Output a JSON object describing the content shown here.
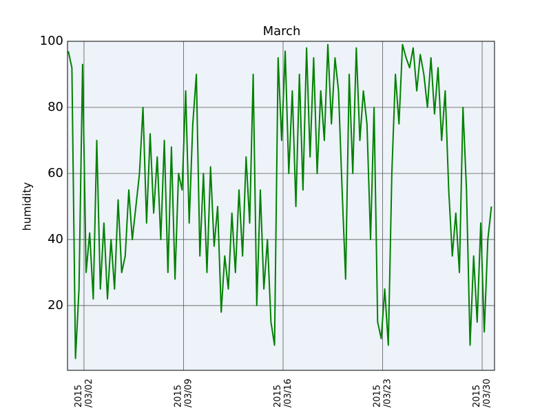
{
  "chart_data": {
    "type": "line",
    "title": "March",
    "ylabel": "humidity",
    "xlim": [
      0.84,
      30.87
    ],
    "ylim": [
      0.4,
      100
    ],
    "yticks": [
      20,
      40,
      60,
      80,
      100
    ],
    "xticks": [
      {
        "value": 2,
        "label": "2015\n/03/02"
      },
      {
        "value": 9,
        "label": "2015\n/03/09"
      },
      {
        "value": 16,
        "label": "2015\n/03/16"
      },
      {
        "value": 23,
        "label": "2015\n/03/23"
      },
      {
        "value": 30,
        "label": "2015\n/03/30"
      }
    ],
    "grid": true,
    "x": [
      0.9,
      1.15,
      1.4,
      1.65,
      1.9,
      2.15,
      2.4,
      2.65,
      2.9,
      3.15,
      3.4,
      3.65,
      3.9,
      4.15,
      4.4,
      4.65,
      4.9,
      5.15,
      5.4,
      5.65,
      5.9,
      6.15,
      6.4,
      6.65,
      6.9,
      7.15,
      7.4,
      7.65,
      7.9,
      8.15,
      8.4,
      8.65,
      8.9,
      9.15,
      9.4,
      9.65,
      9.9,
      10.15,
      10.4,
      10.65,
      10.9,
      11.15,
      11.4,
      11.65,
      11.9,
      12.15,
      12.4,
      12.65,
      12.9,
      13.15,
      13.4,
      13.65,
      13.9,
      14.15,
      14.4,
      14.65,
      14.9,
      15.15,
      15.4,
      15.65,
      15.9,
      16.15,
      16.4,
      16.65,
      16.9,
      17.15,
      17.4,
      17.65,
      17.9,
      18.15,
      18.4,
      18.65,
      18.9,
      19.15,
      19.4,
      19.65,
      19.9,
      20.15,
      20.4,
      20.65,
      20.9,
      21.15,
      21.4,
      21.65,
      21.9,
      22.15,
      22.4,
      22.65,
      22.9,
      23.15,
      23.4,
      23.65,
      23.9,
      24.15,
      24.4,
      24.65,
      24.9,
      25.15,
      25.4,
      25.65,
      25.9,
      26.15,
      26.4,
      26.65,
      26.9,
      27.15,
      27.4,
      27.65,
      27.9,
      28.15,
      28.4,
      28.65,
      28.9,
      29.15,
      29.4,
      29.65,
      29.9,
      30.15,
      30.4,
      30.65
    ],
    "series": [
      {
        "name": "humidity",
        "color": "#008000",
        "values": [
          97,
          92,
          4,
          25,
          93,
          30,
          42,
          22,
          70,
          25,
          45,
          22,
          40,
          25,
          52,
          30,
          35,
          55,
          40,
          50,
          60,
          80,
          45,
          72,
          48,
          65,
          40,
          70,
          30,
          68,
          28,
          60,
          55,
          85,
          45,
          75,
          90,
          35,
          60,
          30,
          62,
          38,
          50,
          18,
          35,
          25,
          48,
          30,
          55,
          35,
          65,
          45,
          90,
          20,
          55,
          25,
          40,
          15,
          8,
          95,
          70,
          97,
          60,
          85,
          50,
          90,
          55,
          98,
          65,
          95,
          60,
          85,
          70,
          99,
          75,
          95,
          85,
          55,
          28,
          90,
          60,
          98,
          70,
          85,
          75,
          40,
          80,
          15,
          10,
          25,
          8,
          60,
          90,
          75,
          99,
          95,
          92,
          98,
          85,
          96,
          90,
          80,
          95,
          78,
          92,
          70,
          85,
          55,
          35,
          48,
          30,
          80,
          55,
          8,
          35,
          15,
          45,
          12,
          40,
          50
        ]
      }
    ]
  }
}
